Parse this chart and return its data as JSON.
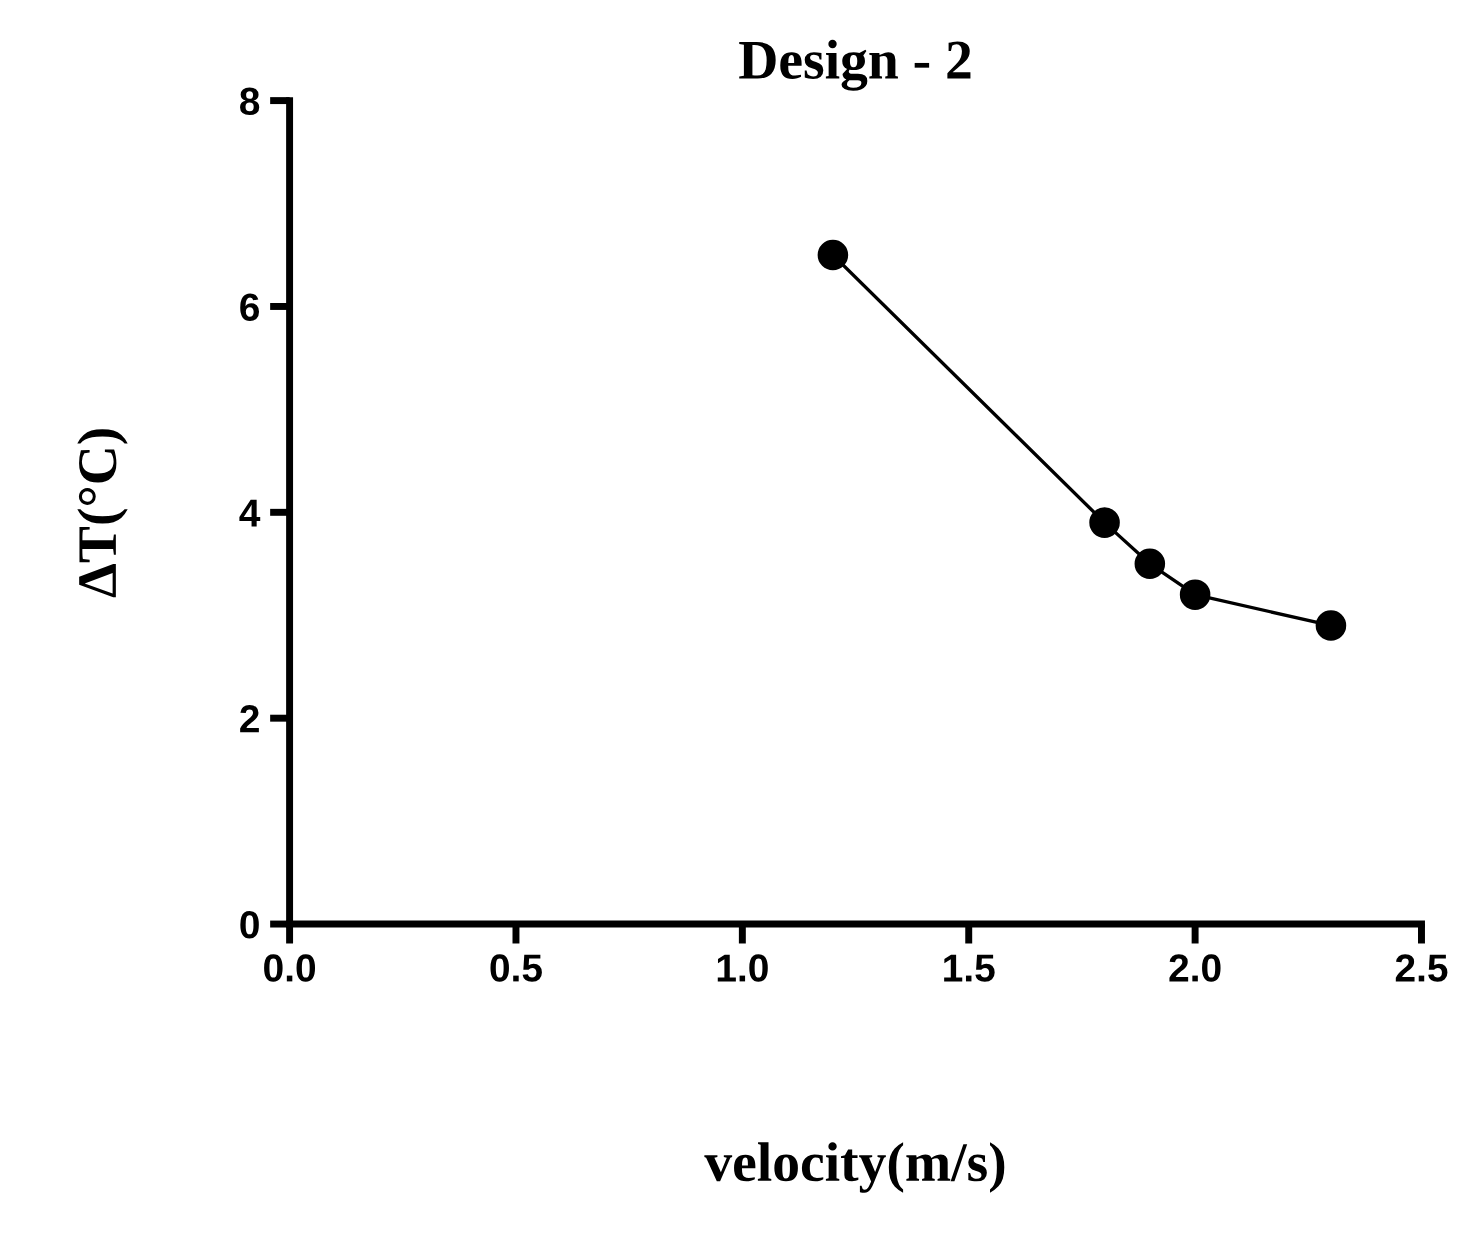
{
  "chart_data": {
    "type": "line",
    "title": "Design - 2",
    "xlabel": "velocity(m/s)",
    "ylabel": "ΔT(°C)",
    "x": [
      1.2,
      1.8,
      1.9,
      2.0,
      2.3
    ],
    "series": [
      {
        "color": "#000000",
        "values": [
          6.5,
          3.9,
          3.5,
          3.2,
          2.9
        ]
      }
    ],
    "xlim": [
      0,
      2.5
    ],
    "xticks": [
      {
        "value": 0,
        "label": "0.0"
      },
      0.5,
      {
        "value": 1,
        "label": "1.0"
      },
      1.5,
      {
        "value": 2,
        "label": "2.0"
      },
      2.5
    ],
    "ylim": [
      0,
      8
    ],
    "yticks": [
      0,
      2,
      4,
      6,
      8
    ],
    "marker": "circle",
    "line_style": "solid",
    "grid": false,
    "legend": false
  }
}
